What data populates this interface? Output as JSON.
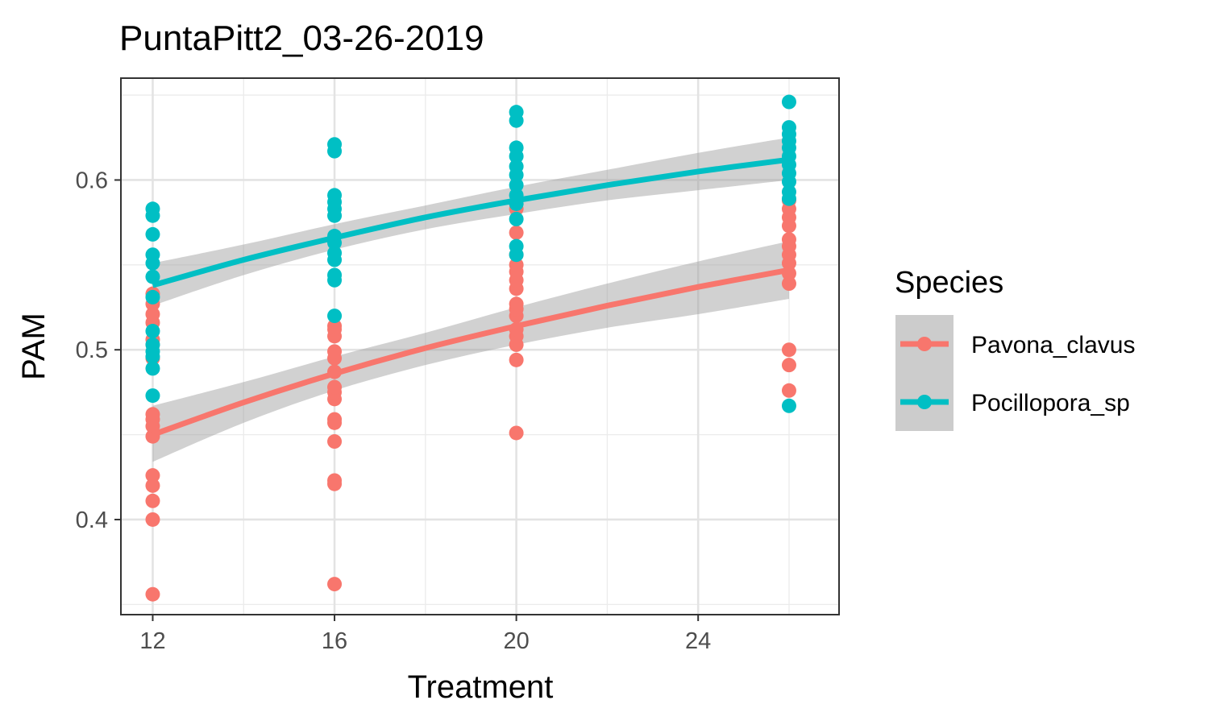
{
  "chart_data": {
    "type": "scatter",
    "title": "PuntaPitt2_03-26-2019",
    "xlabel": "Treatment",
    "ylabel": "PAM",
    "xlim": [
      11.3,
      27.1
    ],
    "ylim": [
      0.344,
      0.66
    ],
    "x_ticks": [
      12,
      16,
      20,
      24
    ],
    "y_ticks": [
      0.4,
      0.5,
      0.6
    ],
    "x_tick_labels": [
      "12",
      "16",
      "20",
      "24"
    ],
    "y_tick_labels": [
      "0.4",
      "0.5",
      "0.6"
    ],
    "grid": true,
    "fit": "smooth trend with grey confidence band",
    "legend": {
      "title": "Species",
      "placement": "right"
    },
    "series": [
      {
        "name": "Pavona_clavus",
        "color": "#F8766D",
        "points": [
          {
            "x": 12,
            "y": 0.356
          },
          {
            "x": 12,
            "y": 0.4
          },
          {
            "x": 12,
            "y": 0.411
          },
          {
            "x": 12,
            "y": 0.42
          },
          {
            "x": 12,
            "y": 0.426
          },
          {
            "x": 12,
            "y": 0.449
          },
          {
            "x": 12,
            "y": 0.455
          },
          {
            "x": 12,
            "y": 0.459
          },
          {
            "x": 12,
            "y": 0.462
          },
          {
            "x": 12,
            "y": 0.495
          },
          {
            "x": 12,
            "y": 0.503
          },
          {
            "x": 12,
            "y": 0.506
          },
          {
            "x": 12,
            "y": 0.516
          },
          {
            "x": 12,
            "y": 0.521
          },
          {
            "x": 12,
            "y": 0.527
          },
          {
            "x": 12,
            "y": 0.533
          },
          {
            "x": 16,
            "y": 0.362
          },
          {
            "x": 16,
            "y": 0.421
          },
          {
            "x": 16,
            "y": 0.423
          },
          {
            "x": 16,
            "y": 0.446
          },
          {
            "x": 16,
            "y": 0.457
          },
          {
            "x": 16,
            "y": 0.459
          },
          {
            "x": 16,
            "y": 0.471
          },
          {
            "x": 16,
            "y": 0.475
          },
          {
            "x": 16,
            "y": 0.478
          },
          {
            "x": 16,
            "y": 0.487
          },
          {
            "x": 16,
            "y": 0.495
          },
          {
            "x": 16,
            "y": 0.499
          },
          {
            "x": 16,
            "y": 0.508
          },
          {
            "x": 16,
            "y": 0.512
          },
          {
            "x": 16,
            "y": 0.514
          },
          {
            "x": 20,
            "y": 0.451
          },
          {
            "x": 20,
            "y": 0.494
          },
          {
            "x": 20,
            "y": 0.503
          },
          {
            "x": 20,
            "y": 0.508
          },
          {
            "x": 20,
            "y": 0.512
          },
          {
            "x": 20,
            "y": 0.52
          },
          {
            "x": 20,
            "y": 0.524
          },
          {
            "x": 20,
            "y": 0.527
          },
          {
            "x": 20,
            "y": 0.536
          },
          {
            "x": 20,
            "y": 0.541
          },
          {
            "x": 20,
            "y": 0.546
          },
          {
            "x": 20,
            "y": 0.55
          },
          {
            "x": 20,
            "y": 0.556
          },
          {
            "x": 20,
            "y": 0.569
          },
          {
            "x": 20,
            "y": 0.583
          },
          {
            "x": 26,
            "y": 0.476
          },
          {
            "x": 26,
            "y": 0.491
          },
          {
            "x": 26,
            "y": 0.5
          },
          {
            "x": 26,
            "y": 0.539
          },
          {
            "x": 26,
            "y": 0.545
          },
          {
            "x": 26,
            "y": 0.551
          },
          {
            "x": 26,
            "y": 0.556
          },
          {
            "x": 26,
            "y": 0.561
          },
          {
            "x": 26,
            "y": 0.565
          },
          {
            "x": 26,
            "y": 0.573
          },
          {
            "x": 26,
            "y": 0.578
          },
          {
            "x": 26,
            "y": 0.583
          },
          {
            "x": 26,
            "y": 0.588
          }
        ],
        "fit": [
          {
            "x": 12,
            "y": 0.45,
            "lo": 0.434,
            "hi": 0.467
          },
          {
            "x": 14,
            "y": 0.469,
            "lo": 0.457,
            "hi": 0.481
          },
          {
            "x": 16,
            "y": 0.486,
            "lo": 0.476,
            "hi": 0.496
          },
          {
            "x": 18,
            "y": 0.501,
            "lo": 0.491,
            "hi": 0.51
          },
          {
            "x": 20,
            "y": 0.514,
            "lo": 0.503,
            "hi": 0.525
          },
          {
            "x": 22,
            "y": 0.526,
            "lo": 0.513,
            "hi": 0.539
          },
          {
            "x": 24,
            "y": 0.537,
            "lo": 0.521,
            "hi": 0.552
          },
          {
            "x": 26,
            "y": 0.547,
            "lo": 0.53,
            "hi": 0.564
          }
        ]
      },
      {
        "name": "Pocillopora_sp",
        "color": "#00BFC4",
        "points": [
          {
            "x": 12,
            "y": 0.473
          },
          {
            "x": 12,
            "y": 0.489
          },
          {
            "x": 12,
            "y": 0.496
          },
          {
            "x": 12,
            "y": 0.499
          },
          {
            "x": 12,
            "y": 0.503
          },
          {
            "x": 12,
            "y": 0.511
          },
          {
            "x": 12,
            "y": 0.531
          },
          {
            "x": 12,
            "y": 0.543
          },
          {
            "x": 12,
            "y": 0.551
          },
          {
            "x": 12,
            "y": 0.556
          },
          {
            "x": 12,
            "y": 0.568
          },
          {
            "x": 12,
            "y": 0.579
          },
          {
            "x": 12,
            "y": 0.583
          },
          {
            "x": 16,
            "y": 0.52
          },
          {
            "x": 16,
            "y": 0.541
          },
          {
            "x": 16,
            "y": 0.544
          },
          {
            "x": 16,
            "y": 0.553
          },
          {
            "x": 16,
            "y": 0.557
          },
          {
            "x": 16,
            "y": 0.563
          },
          {
            "x": 16,
            "y": 0.567
          },
          {
            "x": 16,
            "y": 0.579
          },
          {
            "x": 16,
            "y": 0.583
          },
          {
            "x": 16,
            "y": 0.587
          },
          {
            "x": 16,
            "y": 0.591
          },
          {
            "x": 16,
            "y": 0.617
          },
          {
            "x": 16,
            "y": 0.621
          },
          {
            "x": 20,
            "y": 0.556
          },
          {
            "x": 20,
            "y": 0.561
          },
          {
            "x": 20,
            "y": 0.577
          },
          {
            "x": 20,
            "y": 0.586
          },
          {
            "x": 20,
            "y": 0.591
          },
          {
            "x": 20,
            "y": 0.597
          },
          {
            "x": 20,
            "y": 0.603
          },
          {
            "x": 20,
            "y": 0.608
          },
          {
            "x": 20,
            "y": 0.614
          },
          {
            "x": 20,
            "y": 0.619
          },
          {
            "x": 20,
            "y": 0.635
          },
          {
            "x": 20,
            "y": 0.64
          },
          {
            "x": 26,
            "y": 0.467
          },
          {
            "x": 26,
            "y": 0.589
          },
          {
            "x": 26,
            "y": 0.593
          },
          {
            "x": 26,
            "y": 0.599
          },
          {
            "x": 26,
            "y": 0.604
          },
          {
            "x": 26,
            "y": 0.609
          },
          {
            "x": 26,
            "y": 0.614
          },
          {
            "x": 26,
            "y": 0.619
          },
          {
            "x": 26,
            "y": 0.623
          },
          {
            "x": 26,
            "y": 0.627
          },
          {
            "x": 26,
            "y": 0.631
          },
          {
            "x": 26,
            "y": 0.646
          }
        ],
        "fit": [
          {
            "x": 12,
            "y": 0.538,
            "lo": 0.526,
            "hi": 0.551
          },
          {
            "x": 14,
            "y": 0.553,
            "lo": 0.544,
            "hi": 0.562
          },
          {
            "x": 16,
            "y": 0.566,
            "lo": 0.559,
            "hi": 0.574
          },
          {
            "x": 18,
            "y": 0.578,
            "lo": 0.571,
            "hi": 0.585
          },
          {
            "x": 20,
            "y": 0.588,
            "lo": 0.58,
            "hi": 0.596
          },
          {
            "x": 22,
            "y": 0.597,
            "lo": 0.588,
            "hi": 0.606
          },
          {
            "x": 24,
            "y": 0.605,
            "lo": 0.594,
            "hi": 0.616
          },
          {
            "x": 26,
            "y": 0.612,
            "lo": 0.6,
            "hi": 0.625
          }
        ]
      }
    ]
  }
}
